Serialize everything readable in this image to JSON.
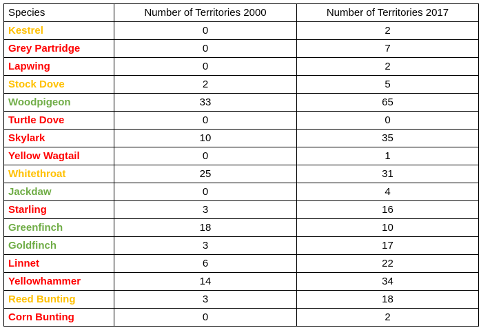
{
  "table": {
    "headers": [
      "Species",
      "Number of Territories 2000",
      "Number of Territories 2017"
    ],
    "status_colors": {
      "red": "#ff0000",
      "amber": "#ffc000",
      "green": "#70ad47"
    },
    "rows": [
      {
        "species": "Kestrel",
        "status": "amber",
        "y2000": "0",
        "y2017": "2"
      },
      {
        "species": "Grey Partridge",
        "status": "red",
        "y2000": "0",
        "y2017": "7"
      },
      {
        "species": "Lapwing",
        "status": "red",
        "y2000": "0",
        "y2017": "2"
      },
      {
        "species": "Stock Dove",
        "status": "amber",
        "y2000": "2",
        "y2017": "5"
      },
      {
        "species": "Woodpigeon",
        "status": "green",
        "y2000": "33",
        "y2017": "65"
      },
      {
        "species": "Turtle Dove",
        "status": "red",
        "y2000": "0",
        "y2017": "0"
      },
      {
        "species": "Skylark",
        "status": "red",
        "y2000": "10",
        "y2017": "35"
      },
      {
        "species": "Yellow Wagtail",
        "status": "red",
        "y2000": "0",
        "y2017": "1"
      },
      {
        "species": "Whitethroat",
        "status": "amber",
        "y2000": "25",
        "y2017": "31"
      },
      {
        "species": "Jackdaw",
        "status": "green",
        "y2000": "0",
        "y2017": "4"
      },
      {
        "species": "Starling",
        "status": "red",
        "y2000": "3",
        "y2017": "16"
      },
      {
        "species": "Greenfinch",
        "status": "green",
        "y2000": "18",
        "y2017": "10"
      },
      {
        "species": "Goldfinch",
        "status": "green",
        "y2000": "3",
        "y2017": "17"
      },
      {
        "species": "Linnet",
        "status": "red",
        "y2000": "6",
        "y2017": "22"
      },
      {
        "species": "Yellowhammer",
        "status": "red",
        "y2000": "14",
        "y2017": "34"
      },
      {
        "species": "Reed Bunting",
        "status": "amber",
        "y2000": "3",
        "y2017": "18"
      },
      {
        "species": "Corn Bunting",
        "status": "red",
        "y2000": "0",
        "y2017": "2"
      }
    ]
  }
}
